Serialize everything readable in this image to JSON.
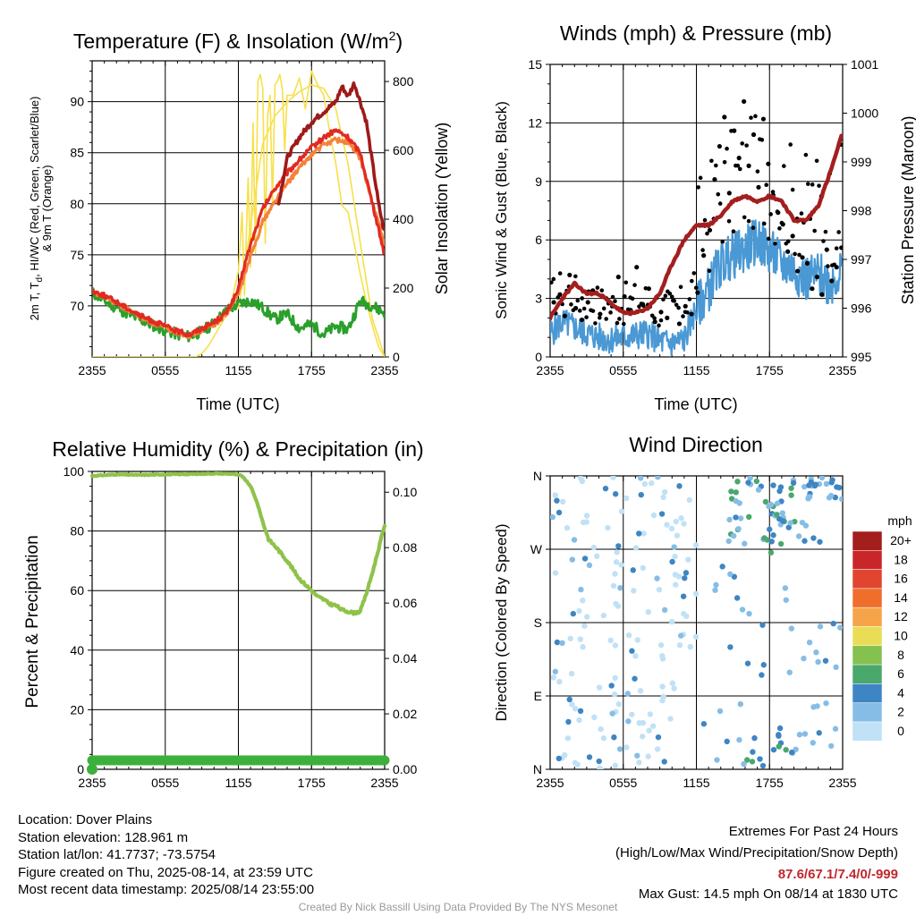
{
  "colors": {
    "t2m": "#e02a22",
    "hi_wc": "#2aa02a",
    "scarlet": "#9e1a1a",
    "t9m": "#f5813a",
    "insolation": "#f7e04a",
    "humidity": "#8fc24a",
    "precip": "#3cb03c",
    "wind": "#4a98d4",
    "gust": "#000000",
    "pressure": "#a31f1f",
    "extremes": "#c1272d",
    "credit": "#999999"
  },
  "time_ticks": [
    "2355",
    "0555",
    "1155",
    "1755",
    "2355"
  ],
  "chart_data": [
    {
      "type": "line",
      "title": "Temperature (F) & Insolation (W/m",
      "title_sup": "2",
      "title_end": ")",
      "xlabel": "Time (UTC)",
      "ylabel_line1": "2m T, T",
      "ylabel_sub": "d",
      "ylabel_line1_end": ", HI/WC (Red, Green, Scarlet/Blue)",
      "ylabel_line2": "& 9m T (Orange)",
      "ylabel_right": "Solar Insolation (Yellow)",
      "ylim": [
        65,
        94
      ],
      "yticks": [
        70,
        75,
        80,
        85,
        90
      ],
      "ylim_right": [
        0,
        860
      ],
      "yticks_right": [
        0,
        200,
        400,
        600,
        800
      ],
      "xlim": [
        0,
        24
      ],
      "series": [
        {
          "key": "t2m",
          "axis": "left",
          "width": 3.2,
          "x": [
            0,
            1,
            2,
            3,
            4,
            5,
            6,
            7,
            8,
            9,
            10,
            11,
            12,
            12.5,
            13,
            14,
            15,
            16,
            17,
            18,
            19,
            20,
            21,
            22,
            23,
            23.8,
            24
          ],
          "y": [
            71.5,
            71,
            70.4,
            69.7,
            69,
            68.5,
            68,
            67.5,
            67.2,
            67.8,
            68.4,
            69.3,
            71.6,
            74,
            76,
            79.5,
            81.5,
            83,
            84.3,
            85.5,
            86.5,
            87.2,
            86.5,
            85,
            80,
            76,
            75
          ]
        },
        {
          "key": "t9m",
          "axis": "left",
          "width": 3.2,
          "x": [
            0,
            1,
            2,
            3,
            4,
            5,
            6,
            7,
            8,
            9,
            10,
            11,
            12,
            12.5,
            13,
            14,
            15,
            16,
            17,
            18,
            19,
            20,
            21,
            22,
            23,
            23.8,
            24
          ],
          "y": [
            71.3,
            70.9,
            70.2,
            69.6,
            68.9,
            68.3,
            67.8,
            67.4,
            67.1,
            67.6,
            68.2,
            69.2,
            71.2,
            73,
            74.8,
            78.3,
            80.2,
            82,
            83.5,
            84.8,
            85.8,
            86.3,
            86,
            84.5,
            80,
            77,
            76
          ]
        },
        {
          "key": "hi_wc",
          "axis": "left",
          "width": 3.0,
          "x": [
            0,
            1,
            2,
            3,
            4,
            5,
            6,
            7,
            8,
            9,
            10,
            11,
            12,
            13,
            14,
            15,
            16,
            17,
            18,
            19,
            20,
            21,
            22,
            23,
            24
          ],
          "y": [
            71.3,
            70.5,
            69.8,
            69.2,
            68.6,
            68.1,
            67.6,
            67.2,
            67,
            67.5,
            68.3,
            69.5,
            70.2,
            70.5,
            69.8,
            68.7,
            69.2,
            67.8,
            68.2,
            67.2,
            68,
            67.7,
            70.5,
            70,
            69.3
          ]
        },
        {
          "key": "scarlet",
          "axis": "left",
          "width": 3.6,
          "x": [
            15.3,
            16,
            17,
            18,
            19,
            20,
            20.5,
            21,
            21.5,
            22,
            22.5,
            23,
            23.5,
            24
          ],
          "y": [
            80,
            84.5,
            86.5,
            88,
            89,
            90,
            91.5,
            90.5,
            91.8,
            90,
            88,
            84,
            80,
            77
          ]
        },
        {
          "key": "insolation",
          "axis": "right",
          "width": 1.6,
          "x": [
            0,
            8.5,
            9,
            9.5,
            10,
            10.5,
            11,
            11.5,
            12,
            12.3,
            12.5,
            12.8,
            13,
            13.2,
            13.4,
            13.6,
            13.8,
            14,
            14.2,
            14.4,
            14.6,
            14.8,
            15,
            15.2,
            15.4,
            15.6,
            15.8,
            16,
            16.5,
            17,
            17.5,
            18,
            18.5,
            19,
            19.5,
            20,
            20.5,
            21,
            21.5,
            22,
            22.5,
            23,
            23.5,
            24
          ],
          "y": [
            0,
            0,
            10,
            30,
            60,
            90,
            120,
            170,
            250,
            420,
            180,
            520,
            260,
            680,
            300,
            800,
            820,
            780,
            330,
            700,
            760,
            440,
            790,
            800,
            820,
            780,
            600,
            760,
            760,
            810,
            720,
            830,
            790,
            760,
            650,
            560,
            440,
            420,
            330,
            240,
            160,
            90,
            30,
            0
          ]
        },
        {
          "key": "insolation",
          "axis": "right",
          "width": 1.6,
          "x": [
            12,
            13,
            14,
            15,
            16,
            17,
            18,
            19,
            20,
            21,
            22,
            23,
            24
          ],
          "y": [
            140,
            380,
            620,
            700,
            740,
            770,
            790,
            780,
            720,
            560,
            330,
            110,
            0
          ]
        }
      ]
    },
    {
      "type": "line",
      "title": "Winds (mph) & Pressure (mb)",
      "xlabel": "Time (UTC)",
      "ylabel": "Sonic Wind & Gust (Blue, Black)",
      "ylabel_right": "Station Pressure (Maroon)",
      "ylim": [
        0,
        15
      ],
      "yticks": [
        0,
        3,
        6,
        9,
        12,
        15
      ],
      "ylim_right": [
        995,
        1001
      ],
      "yticks_right": [
        995,
        996,
        997,
        998,
        999,
        1000,
        1001
      ],
      "xlim": [
        0,
        24
      ],
      "wind": {
        "x": [
          0,
          1,
          2,
          3,
          4,
          5,
          6,
          7,
          8,
          9,
          10,
          11,
          12,
          13,
          14,
          15,
          16,
          17,
          18,
          19,
          20,
          21,
          22,
          23,
          24
        ],
        "y": [
          1.2,
          1.8,
          1.5,
          1.2,
          1.0,
          0.9,
          1.0,
          1.1,
          1.2,
          0.8,
          0.7,
          0.9,
          2.5,
          3.5,
          4.8,
          5.2,
          5.5,
          6.0,
          5.4,
          4.8,
          4.5,
          4.0,
          4.2,
          3.8,
          4.5
        ]
      },
      "gust_x": [
        0.3,
        0.8,
        1.2,
        1.6,
        2.1,
        2.6,
        3.1,
        3.5,
        4.1,
        4.6,
        5.1,
        5.6,
        6.1,
        6.6,
        7.1,
        7.6,
        8.1,
        8.6,
        9.1,
        9.6,
        10.1,
        10.6,
        11.1,
        11.6,
        12.1,
        12.6,
        13.1,
        13.5,
        13.9,
        14.3,
        14.7,
        15.1,
        15.5,
        15.9,
        16.3,
        16.7,
        17.1,
        17.5,
        17.9,
        18.3,
        18.7,
        19.1,
        19.5,
        19.9,
        20.3,
        20.7,
        21.1,
        21.5,
        21.9,
        22.3,
        22.7,
        23.1,
        23.5,
        23.9
      ],
      "gust_y": [
        2.8,
        3.2,
        2.1,
        4.2,
        2.5,
        1.9,
        2.8,
        3.4,
        2.2,
        3.0,
        2.6,
        4.1,
        3.1,
        2.4,
        4.6,
        2.7,
        3.5,
        1.8,
        2.3,
        2.0,
        2.9,
        1.7,
        2.6,
        2.2,
        3.3,
        5.2,
        6.5,
        9.1,
        10.8,
        12.3,
        8.4,
        11.6,
        10.2,
        13.1,
        9.8,
        11.4,
        8.7,
        12.2,
        9.9,
        8.3,
        7.4,
        6.8,
        5.4,
        6.2,
        4.4,
        5.1,
        4.8,
        3.5,
        4.1,
        3.2,
        5.5,
        3.9,
        4.6,
        5.6
      ],
      "pressure": {
        "x": [
          0,
          1,
          2,
          3,
          4,
          5,
          6,
          7,
          8,
          9,
          10,
          11,
          12,
          13,
          14,
          15,
          16,
          17,
          18,
          19,
          20,
          21,
          22,
          23,
          24
        ],
        "y": [
          995.8,
          996.2,
          996.5,
          996.3,
          996.3,
          996.1,
          995.9,
          995.9,
          996.0,
          996.3,
          996.9,
          997.4,
          997.7,
          997.7,
          997.9,
          998.2,
          998.3,
          998.2,
          998.3,
          998.2,
          997.8,
          997.8,
          998.1,
          998.8,
          999.6
        ]
      }
    },
    {
      "type": "line",
      "title": "Relative Humidity (%) & Precipitation (in)",
      "ylabel": "Percent & Precipitation",
      "ylim": [
        0,
        100
      ],
      "yticks": [
        0,
        20,
        40,
        60,
        80,
        100
      ],
      "ylim_right": [
        0,
        0.1075
      ],
      "yticks_right": [
        "0.00",
        "0.02",
        "0.04",
        "0.06",
        "0.08",
        "0.10"
      ],
      "yticks_right_values": [
        0,
        0.02,
        0.04,
        0.06,
        0.08,
        0.1
      ],
      "xlim": [
        0,
        24
      ],
      "humidity": {
        "x": [
          0,
          2,
          4,
          6,
          8,
          10,
          11.5,
          12.3,
          13,
          13.5,
          14,
          14.5,
          15,
          16,
          17,
          18,
          18.5,
          19,
          19.5,
          20,
          20.5,
          21,
          21.5,
          22,
          22.5,
          23,
          23.5,
          24
        ],
        "y": [
          98.5,
          99,
          98.8,
          99,
          99.1,
          99.3,
          99.2,
          98.5,
          95,
          90,
          83,
          77,
          75,
          70,
          64,
          60,
          58,
          57,
          55.5,
          55,
          53.5,
          53,
          52.5,
          53,
          59,
          66,
          74,
          82
        ]
      },
      "precip": {
        "x": [
          0,
          24
        ],
        "y": [
          0,
          0
        ],
        "display_percent": 3
      }
    },
    {
      "type": "scatter",
      "title": "Wind Direction",
      "ylabel": "Direction (Colored By Speed)",
      "ytick_labels": [
        "N",
        "E",
        "S",
        "W",
        "N"
      ],
      "ylim": [
        0,
        360
      ],
      "xlim": [
        0,
        24
      ],
      "legend": {
        "title": "mph",
        "labels": [
          "20+",
          "18",
          "16",
          "14",
          "12",
          "10",
          "8",
          "6",
          "4",
          "2",
          "0"
        ],
        "colors": [
          "#a41e1e",
          "#c9262a",
          "#e1452f",
          "#ef6e2c",
          "#f6a44a",
          "#e9dd55",
          "#85c14f",
          "#4aa86d",
          "#3e85c4",
          "#86bde6",
          "#c0e1f6"
        ]
      }
    }
  ],
  "footer_left": [
    "Location: Dover Plains",
    "Station elevation: 128.961 m",
    "Station lat/lon: 41.7737; -73.5754",
    "Figure created on Thu, 2025-08-14, at 23:59 UTC",
    "Most recent data timestamp: 2025/08/14 23:55:00"
  ],
  "extremes_title": "Extremes For Past 24 Hours",
  "extremes_sub": "(High/Low/Max Wind/Precipitation/Snow Depth)",
  "extremes_values": "87.6/67.1/7.4/0/-999",
  "max_gust": "Max Gust: 14.5 mph On 08/14 at 1830 UTC",
  "credit": "Created By Nick Bassill Using Data Provided By The NYS Mesonet"
}
